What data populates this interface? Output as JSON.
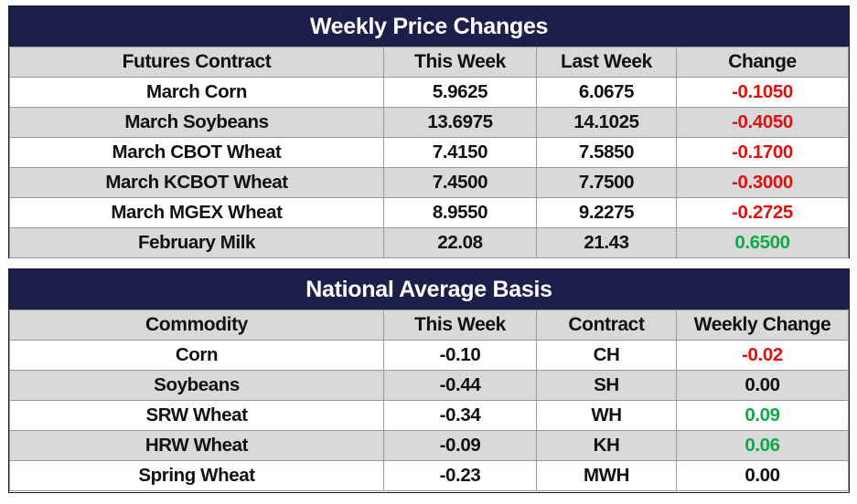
{
  "weekly": {
    "title": "Weekly Price Changes",
    "headers": [
      "Futures Contract",
      "This Week",
      "Last Week",
      "Change"
    ],
    "rows": [
      {
        "contract": "March Corn",
        "this_week": "5.9625",
        "last_week": "6.0675",
        "change": "-0.1050",
        "trend": "neg"
      },
      {
        "contract": "March Soybeans",
        "this_week": "13.6975",
        "last_week": "14.1025",
        "change": "-0.4050",
        "trend": "neg"
      },
      {
        "contract": "March CBOT Wheat",
        "this_week": "7.4150",
        "last_week": "7.5850",
        "change": "-0.1700",
        "trend": "neg"
      },
      {
        "contract": "March KCBOT Wheat",
        "this_week": "7.4500",
        "last_week": "7.7500",
        "change": "-0.3000",
        "trend": "neg"
      },
      {
        "contract": "March MGEX Wheat",
        "this_week": "8.9550",
        "last_week": "9.2275",
        "change": "-0.2725",
        "trend": "neg"
      },
      {
        "contract": "February Milk",
        "this_week": "22.08",
        "last_week": "21.43",
        "change": "0.6500",
        "trend": "pos"
      }
    ]
  },
  "basis": {
    "title": "National Average Basis",
    "headers": [
      "Commodity",
      "This Week",
      "Contract",
      "Weekly Change"
    ],
    "rows": [
      {
        "commodity": "Corn",
        "this_week": "-0.10",
        "contract": "CH",
        "change": "-0.02",
        "trend": "neg"
      },
      {
        "commodity": "Soybeans",
        "this_week": "-0.44",
        "contract": "SH",
        "change": "0.00",
        "trend": "zero"
      },
      {
        "commodity": "SRW Wheat",
        "this_week": "-0.34",
        "contract": "WH",
        "change": "0.09",
        "trend": "pos"
      },
      {
        "commodity": "HRW Wheat",
        "this_week": "-0.09",
        "contract": "KH",
        "change": "0.06",
        "trend": "pos"
      },
      {
        "commodity": "Spring Wheat",
        "this_week": "-0.23",
        "contract": "MWH",
        "change": "0.00",
        "trend": "zero"
      }
    ]
  },
  "colors": {
    "header_bg": "#1d1f4b",
    "row_alt_bg": "#d9d9d9",
    "negative": "#e01010",
    "positive": "#12a84a"
  }
}
